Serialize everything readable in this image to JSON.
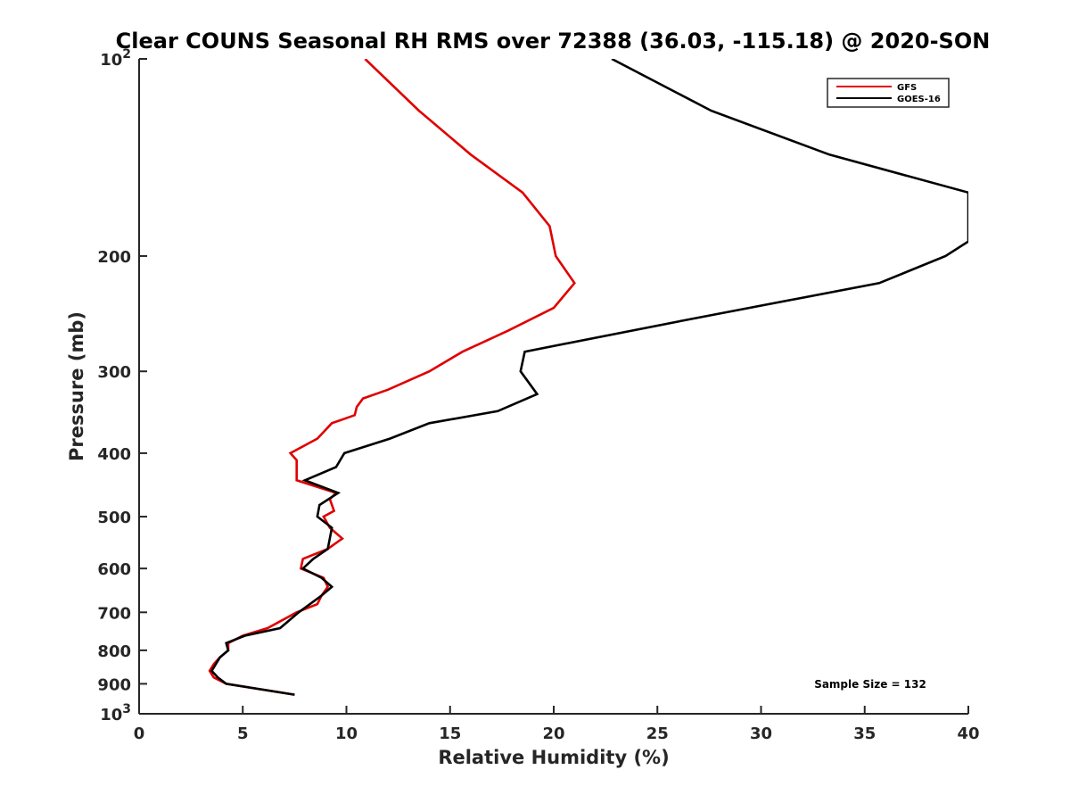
{
  "chart_data": {
    "type": "line",
    "title": "Clear COUNS Seasonal RH RMS over 72388 (36.03, -115.18) @ 2020-SON",
    "xlabel": "Relative Humidity (%)",
    "ylabel": "Pressure (mb)",
    "xlim": [
      0,
      40
    ],
    "ylim": [
      100,
      1000
    ],
    "y_scale": "log",
    "y_reversed": true,
    "x_ticks": [
      "0",
      "5",
      "10",
      "15",
      "20",
      "25",
      "30",
      "35",
      "40"
    ],
    "y_ticks": [
      {
        "value": 100,
        "base": "10",
        "exp": "2"
      },
      {
        "value": 200,
        "label": "200"
      },
      {
        "value": 300,
        "label": "300"
      },
      {
        "value": 400,
        "label": "400"
      },
      {
        "value": 500,
        "label": "500"
      },
      {
        "value": 600,
        "label": "600"
      },
      {
        "value": 700,
        "label": "700"
      },
      {
        "value": 800,
        "label": "800"
      },
      {
        "value": 900,
        "label": "900"
      },
      {
        "value": 1000,
        "base": "10",
        "exp": "3"
      }
    ],
    "series": [
      {
        "name": "GFS",
        "color": "#e00000",
        "x": [
          10.9,
          13.5,
          16,
          18.5,
          19.8,
          20.1,
          21,
          20,
          17.8,
          15.6,
          14,
          12,
          10.8,
          10.5,
          10.4,
          9.3,
          8.6,
          7.3,
          7.6,
          7.6,
          9.5,
          9.2,
          9.4,
          8.9,
          9.2,
          9.8,
          9.1,
          7.9,
          7.8,
          8.9,
          9.1,
          8.8,
          8.6,
          7.6,
          6.2,
          5,
          4.3,
          4.3,
          3.9,
          3.6,
          3.4,
          3.6,
          4.2,
          7.5
        ],
        "y": [
          100,
          120,
          140,
          160,
          180,
          200,
          220,
          240,
          260,
          280,
          300,
          320,
          330,
          340,
          350,
          360,
          380,
          400,
          410,
          440,
          460,
          470,
          490,
          500,
          520,
          540,
          560,
          580,
          600,
          620,
          640,
          660,
          680,
          700,
          740,
          760,
          780,
          800,
          820,
          840,
          860,
          880,
          900,
          935
        ]
      },
      {
        "name": "GOES-16",
        "color": "#000000",
        "x": [
          22.8,
          27.6,
          33.3,
          40,
          40,
          38.9,
          35.7,
          26.5,
          18.6,
          18.4,
          19.2,
          17.3,
          14,
          12.1,
          9.9,
          9.5,
          8,
          9.6,
          8.7,
          8.6,
          9.3,
          9.1,
          8.4,
          7.9,
          8.8,
          9.3,
          8.8,
          7.7,
          6.8,
          5.1,
          4.2,
          4.3,
          3.9,
          3.5,
          3.8,
          4.2,
          7.5
        ],
        "y": [
          100,
          120,
          140,
          160,
          190,
          200,
          220,
          250,
          280,
          300,
          325,
          345,
          360,
          380,
          400,
          420,
          440,
          460,
          480,
          500,
          520,
          560,
          580,
          600,
          620,
          640,
          660,
          700,
          740,
          760,
          780,
          800,
          820,
          860,
          880,
          900,
          935
        ]
      }
    ],
    "legend": {
      "location": "top-right",
      "entries": [
        "GFS",
        "GOES-16"
      ]
    },
    "annotation": "Sample Size = 132",
    "grid": false
  }
}
